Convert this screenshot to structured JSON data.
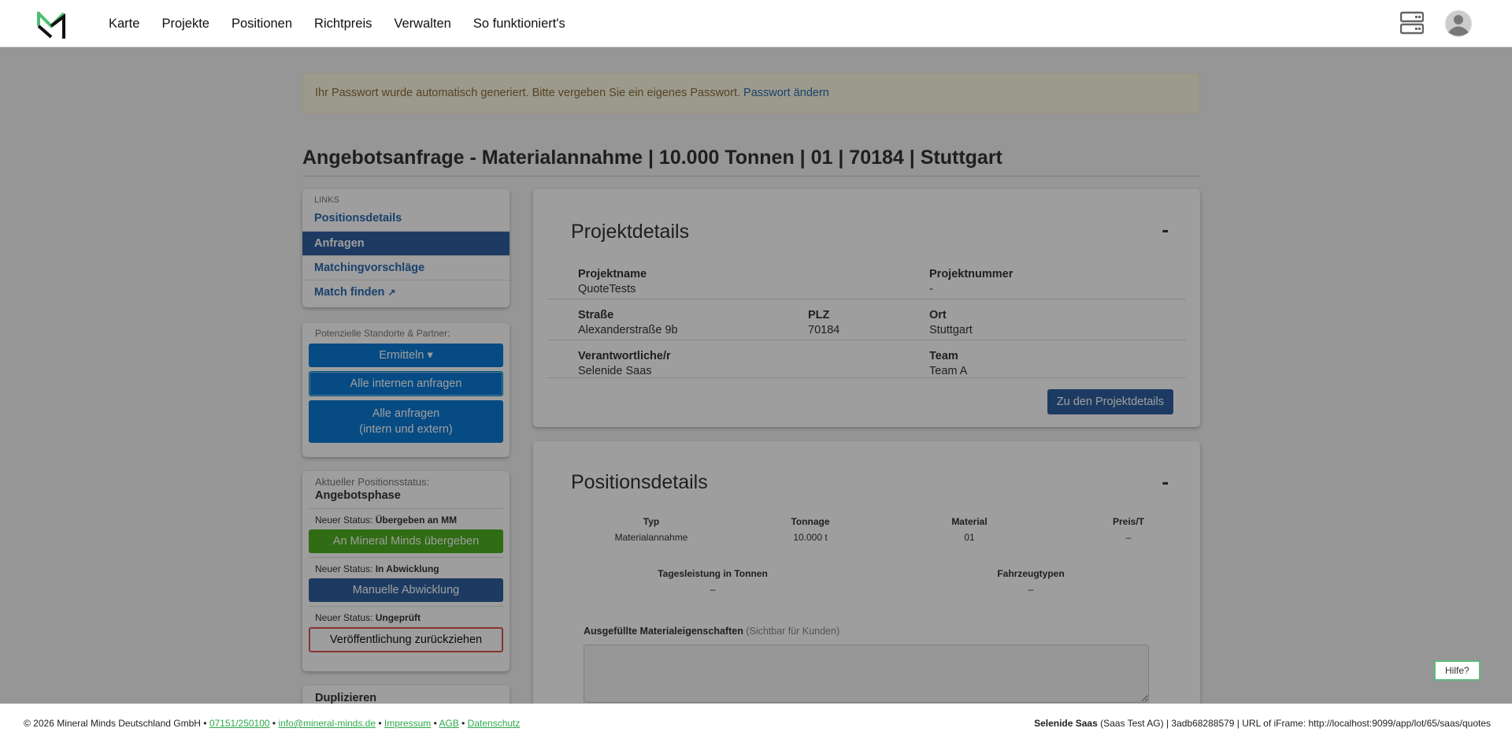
{
  "nav": {
    "items": [
      "Karte",
      "Projekte",
      "Positionen",
      "Richtpreis",
      "Verwalten",
      "So funktioniert's"
    ]
  },
  "alert": {
    "text": "Ihr Passwort wurde automatisch generiert. Bitte vergeben Sie ein eigenes Passwort.",
    "link": "Passwort ändern"
  },
  "page_title": "Angebotsanfrage - Materialannahme | 10.000 Tonnen | 01 | 70184 | Stuttgart",
  "links": {
    "heading": "LINKS",
    "items": [
      "Positionsdetails",
      "Anfragen",
      "Matchingvorschläge",
      "Match finden"
    ]
  },
  "partners": {
    "label": "Potenzielle Standorte & Partner:",
    "ermitteln": "Ermitteln",
    "intern": "Alle internen anfragen",
    "alle1": "Alle anfragen",
    "alle2": "(intern und extern)"
  },
  "status": {
    "label": "Aktueller Positionsstatus:",
    "current": "Angebotsphase",
    "prefix": "Neuer Status:",
    "s1": "Übergeben an MM",
    "b1": "An Mineral Minds übergeben",
    "s2": "In Abwicklung",
    "b2": "Manuelle Abwicklung",
    "s3": "Ungeprüft",
    "b3": "Veröffentlichung zurückziehen"
  },
  "duplicate": "Duplizieren",
  "project": {
    "title": "Projektdetails",
    "collapse": "-",
    "name_l": "Projektname",
    "name": "QuoteTests",
    "nr_l": "Projektnummer",
    "nr": "-",
    "street_l": "Straße",
    "street": "Alexanderstraße 9b",
    "plz_l": "PLZ",
    "plz": "70184",
    "ort_l": "Ort",
    "ort": "Stuttgart",
    "resp_l": "Verantwortliche/r",
    "resp": "Selenide Saas",
    "team_l": "Team",
    "team": "Team A",
    "button": "Zu den Projektdetails"
  },
  "position": {
    "title": "Positionsdetails",
    "collapse": "-",
    "typ_l": "Typ",
    "typ": "Materialannahme",
    "ton_l": "Tonnage",
    "ton": "10.000 t",
    "mat_l": "Material",
    "mat": "01",
    "preis_l": "Preis/T",
    "preis": "–",
    "tag_l": "Tagesleistung in Tonnen",
    "tag": "–",
    "fz_l": "Fahrzeugtypen",
    "fz": "–",
    "props_l": "Ausgefüllte Materialeigenschaften",
    "props_hint": "(Sichtbar für Kunden)"
  },
  "help": "Hilfe?",
  "footer": {
    "copy": "© 2026 Mineral Minds Deutschland GmbH",
    "phone": "07151/250100",
    "email": "info@mineral-minds.de",
    "impressum": "Impressum",
    "agb": "AGB",
    "datenschutz": "Datenschutz",
    "user": "Selenide Saas",
    "company": "(Saas Test AG) | 3adb68288579 | URL of iFrame: http://localhost:9099/app/lot/65/saas/quotes"
  },
  "colors": {
    "primary": "#0a7ad5",
    "dark_blue": "#2f5f9e",
    "green": "#4caf1f",
    "danger": "#d9534f",
    "link_green": "#2eaa4a"
  }
}
